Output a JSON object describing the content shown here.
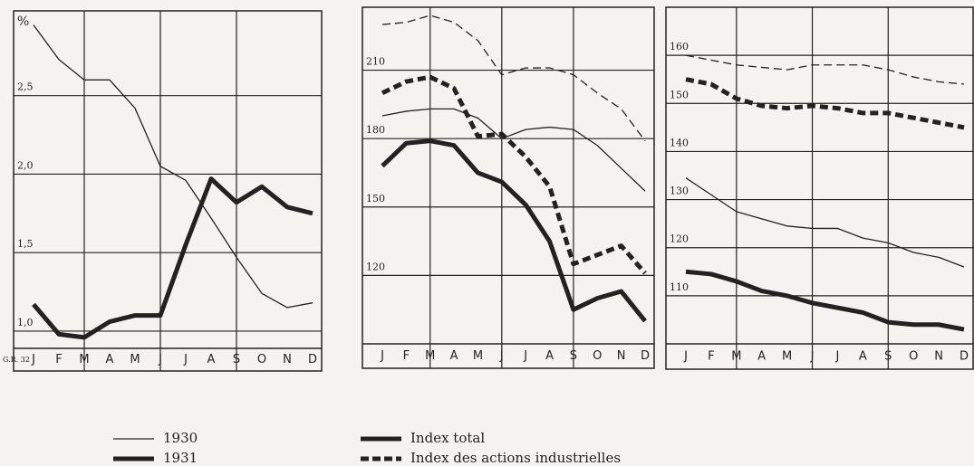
{
  "chart_data": [
    {
      "type": "line",
      "ylabel": "%",
      "annotation": "G.R. 32",
      "categories": [
        "J",
        "F",
        "M",
        "A",
        "M",
        "J",
        "J",
        "A",
        "S",
        "O",
        "N",
        "D"
      ],
      "ylim": [
        0.89,
        3.04
      ],
      "yticks": [
        {
          "value": 1,
          "label": "1,0"
        },
        {
          "value": 1.5,
          "label": "1,5"
        },
        {
          "value": 2,
          "label": "2,0"
        },
        {
          "value": 2.5,
          "label": "2,5"
        }
      ],
      "grid": true,
      "series": [
        {
          "legend": 0,
          "color": "#222",
          "values": [
            2.95,
            2.73,
            2.6,
            2.6,
            2.42,
            2.05,
            1.96,
            1.72,
            1.47,
            1.24,
            1.15,
            1.18
          ]
        },
        {
          "legend": 1,
          "color": "#222",
          "values": [
            1.17,
            0.98,
            0.96,
            1.06,
            1.1,
            1.1,
            1.55,
            1.97,
            1.82,
            1.92,
            1.79,
            1.75
          ]
        }
      ]
    },
    {
      "type": "line",
      "categories": [
        "J",
        "F",
        "M",
        "A",
        "M",
        "J",
        "J",
        "A",
        "S",
        "O",
        "N",
        "D"
      ],
      "ylim": [
        90,
        237.6
      ],
      "yticks": [
        120,
        150,
        180,
        210
      ],
      "grid": true,
      "series": [
        {
          "legend": 0,
          "dashed": true,
          "color": "#222",
          "values": [
            230,
            231,
            234,
            231,
            223,
            208,
            211,
            211,
            208,
            200,
            193,
            179
          ]
        },
        {
          "legend": 1,
          "dashed": true,
          "color": "#222",
          "values": [
            200,
            205,
            207,
            202,
            181,
            182,
            172,
            159,
            125,
            129,
            133,
            121
          ]
        },
        {
          "legend": 0,
          "color": "#222",
          "values": [
            190,
            192,
            193,
            193,
            189,
            180,
            184,
            185,
            184,
            177,
            167,
            157
          ]
        },
        {
          "legend": 1,
          "color": "#222",
          "values": [
            168,
            178,
            179,
            177,
            165,
            161,
            151,
            135,
            105,
            110,
            113,
            100
          ]
        }
      ]
    },
    {
      "type": "line",
      "categories": [
        "J",
        "F",
        "M",
        "A",
        "M",
        "J",
        "J",
        "A",
        "S",
        "O",
        "N",
        "D"
      ],
      "ylim": [
        100,
        170
      ],
      "yticks": [
        110,
        120,
        130,
        140,
        150,
        160
      ],
      "grid": true,
      "series": [
        {
          "legend": 0,
          "dashed": true,
          "color": "#222",
          "values": [
            160,
            159,
            158,
            157.5,
            157,
            158,
            158,
            158,
            157,
            155.5,
            154.5,
            154
          ]
        },
        {
          "legend": 1,
          "dashed": true,
          "color": "#222",
          "values": [
            155,
            154,
            151,
            149.5,
            149,
            149.5,
            149,
            148,
            148,
            147,
            146,
            145
          ]
        },
        {
          "legend": 0,
          "color": "#222",
          "values": [
            134.5,
            131,
            127.5,
            126,
            124.5,
            124,
            124,
            122,
            121,
            119,
            118,
            116
          ]
        },
        {
          "legend": 1,
          "color": "#222",
          "values": [
            115,
            114.5,
            113,
            111,
            110,
            108.5,
            107.5,
            106.5,
            104.5,
            104,
            104,
            103
          ]
        }
      ]
    }
  ],
  "legend": [
    {
      "label": "1930",
      "width": 1.3,
      "dashed": false
    },
    {
      "label": "1931",
      "width": 5,
      "dashed": false
    },
    {
      "label": "Index total",
      "width": 5,
      "dashed": false
    },
    {
      "label": "Index des actions industrielles",
      "width": 5,
      "dashed": true
    }
  ]
}
